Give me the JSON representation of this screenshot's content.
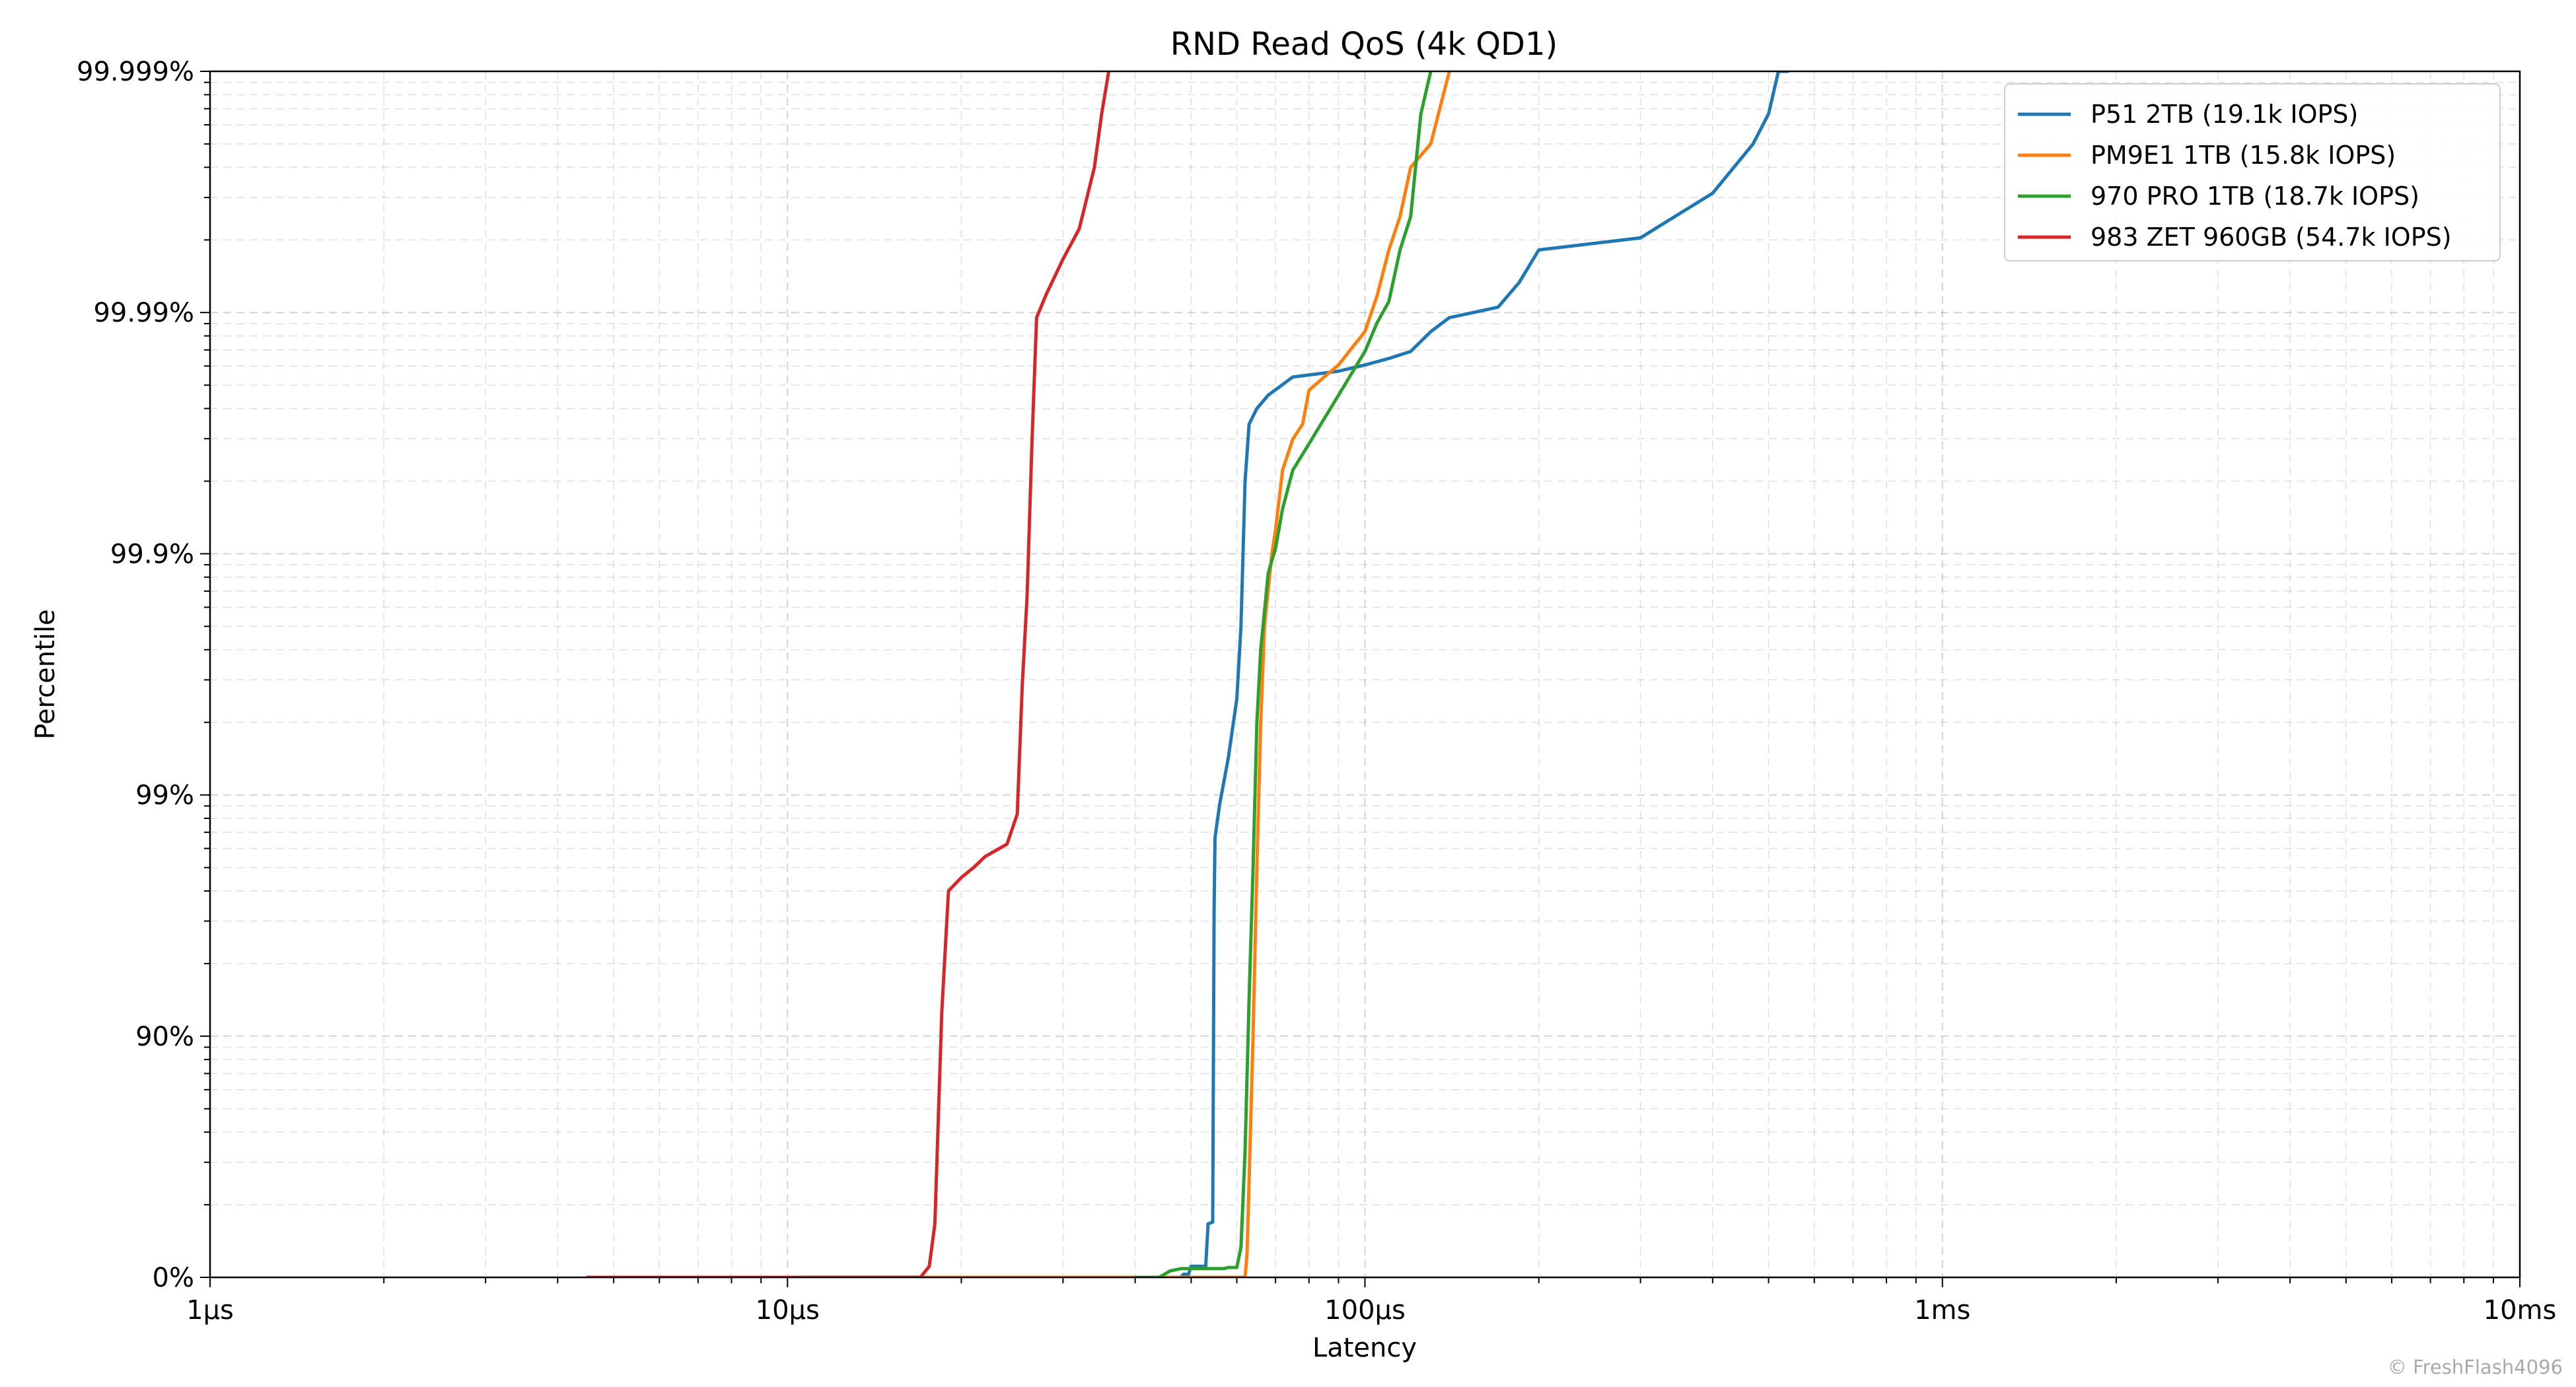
{
  "chart_data": {
    "type": "line",
    "title": "RND Read QoS (4k QD1)",
    "xlabel": "Latency",
    "ylabel": "Percentile",
    "x_scale": "log",
    "x_unit": "µs",
    "xlim": [
      1,
      10000
    ],
    "x_ticks": [
      {
        "value": 1,
        "label": "1µs"
      },
      {
        "value": 10,
        "label": "10µs"
      },
      {
        "value": 100,
        "label": "100µs"
      },
      {
        "value": 1000,
        "label": "1ms"
      },
      {
        "value": 10000,
        "label": "10ms"
      }
    ],
    "y_scale": "log complement (nines)",
    "ylim": [
      0,
      99.999
    ],
    "y_ticks": [
      {
        "value": 0,
        "label": "0%"
      },
      {
        "value": 90,
        "label": "90%"
      },
      {
        "value": 99,
        "label": "99%"
      },
      {
        "value": 99.9,
        "label": "99.9%"
      },
      {
        "value": 99.99,
        "label": "99.99%"
      },
      {
        "value": 99.999,
        "label": "99.999%"
      }
    ],
    "grid": true,
    "legend_position": "top-right",
    "series": [
      {
        "name": "P51 2TB (19.1k IOPS)",
        "color": "#1f77b4",
        "points": [
          [
            44,
            0
          ],
          [
            48,
            0
          ],
          [
            48.5,
            3
          ],
          [
            49.5,
            3
          ],
          [
            50,
            10
          ],
          [
            53,
            10
          ],
          [
            53.5,
            40
          ],
          [
            54.5,
            41
          ],
          [
            54.8,
            97
          ],
          [
            55,
            98.5
          ],
          [
            56,
            98.9
          ],
          [
            58,
            99.3
          ],
          [
            60,
            99.6
          ],
          [
            61,
            99.8
          ],
          [
            62,
            99.95
          ],
          [
            63,
            99.971
          ],
          [
            65,
            99.975
          ],
          [
            68,
            99.978
          ],
          [
            75,
            99.9815
          ],
          [
            90,
            99.9825
          ],
          [
            100,
            99.9835
          ],
          [
            110,
            99.9845
          ],
          [
            120,
            99.9855
          ],
          [
            130,
            99.988
          ],
          [
            140,
            99.9895
          ],
          [
            170,
            99.9905
          ],
          [
            185,
            99.9925
          ],
          [
            200,
            99.9945
          ],
          [
            300,
            99.9951
          ],
          [
            400,
            99.9968
          ],
          [
            470,
            99.998
          ],
          [
            500,
            99.9985
          ],
          [
            520,
            99.9991
          ],
          [
            530,
            99.99935
          ],
          [
            540,
            99.999
          ]
        ]
      },
      {
        "name": "PM9E1 1TB (15.8k IOPS)",
        "color": "#ff7f0e",
        "points": [
          [
            4.5,
            0
          ],
          [
            20,
            0
          ],
          [
            50,
            0
          ],
          [
            62,
            0
          ],
          [
            62.5,
            20
          ],
          [
            63,
            60
          ],
          [
            64,
            90
          ],
          [
            65,
            98
          ],
          [
            66,
            99.5
          ],
          [
            67,
            99.8
          ],
          [
            69,
            99.9
          ],
          [
            70,
            99.92
          ],
          [
            72,
            99.955
          ],
          [
            75,
            99.9665
          ],
          [
            78,
            99.971
          ],
          [
            80,
            99.979
          ],
          [
            85,
            99.9815
          ],
          [
            90,
            99.9835
          ],
          [
            95,
            99.986
          ],
          [
            100,
            99.988
          ],
          [
            105,
            99.9915
          ],
          [
            110,
            99.9945
          ],
          [
            115,
            99.996
          ],
          [
            120,
            99.9975
          ],
          [
            130,
            99.998
          ],
          [
            140,
            99.999
          ]
        ]
      },
      {
        "name": "970 PRO 1TB (18.7k IOPS)",
        "color": "#2ca02c",
        "points": [
          [
            40,
            0
          ],
          [
            44,
            0
          ],
          [
            46,
            6
          ],
          [
            48,
            8
          ],
          [
            57,
            8
          ],
          [
            58,
            9
          ],
          [
            60,
            9
          ],
          [
            61,
            25
          ],
          [
            62,
            70
          ],
          [
            63,
            93
          ],
          [
            64,
            98
          ],
          [
            65,
            99.5
          ],
          [
            66,
            99.75
          ],
          [
            68,
            99.88
          ],
          [
            70,
            99.905
          ],
          [
            72,
            99.935
          ],
          [
            75,
            99.955
          ],
          [
            80,
            99.965
          ],
          [
            90,
            99.978
          ],
          [
            100,
            99.9855
          ],
          [
            105,
            99.989
          ],
          [
            110,
            99.991
          ],
          [
            115,
            99.9945
          ],
          [
            120,
            99.996
          ],
          [
            125,
            99.9985
          ],
          [
            130,
            99.999
          ]
        ]
      },
      {
        "name": "983 ZET 960GB (54.7k IOPS)",
        "color": "#d62728",
        "points": [
          [
            4.5,
            0
          ],
          [
            10,
            0
          ],
          [
            17,
            0.2
          ],
          [
            17.6,
            10
          ],
          [
            18,
            40
          ],
          [
            18.5,
            92
          ],
          [
            19,
            97.5
          ],
          [
            20,
            97.8
          ],
          [
            21,
            98
          ],
          [
            22,
            98.2
          ],
          [
            24,
            98.4
          ],
          [
            25,
            98.8
          ],
          [
            25.5,
            99.65
          ],
          [
            26,
            99.85
          ],
          [
            26.5,
            99.965
          ],
          [
            27,
            99.9895
          ],
          [
            28,
            99.9915
          ],
          [
            30,
            99.994
          ],
          [
            32,
            99.9955
          ],
          [
            34,
            99.9975
          ],
          [
            35,
            99.9985
          ],
          [
            36,
            99.999
          ]
        ]
      }
    ]
  },
  "credit": "© FreshFlash4096"
}
